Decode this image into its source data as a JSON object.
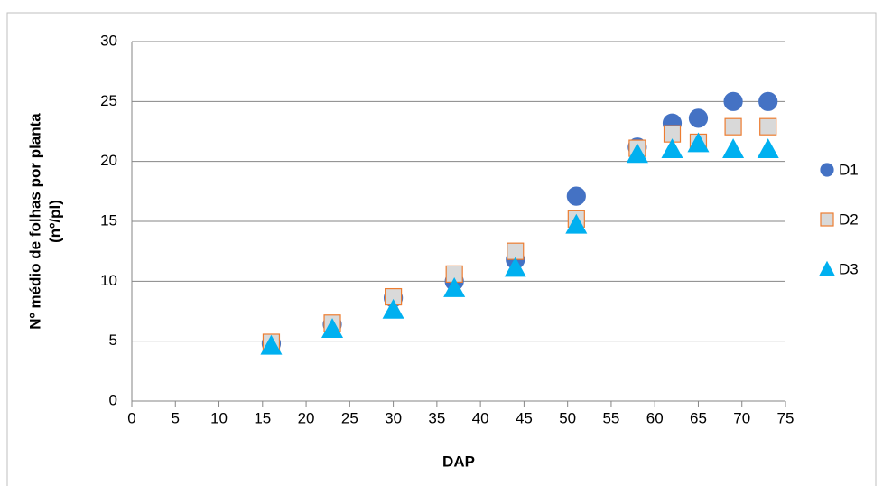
{
  "chart_data": {
    "type": "scatter",
    "xlabel": "DAP",
    "ylabel_lines": [
      "Nº médio de folhas por planta",
      "(nº/pl)"
    ],
    "x": [
      16,
      23,
      30,
      37,
      44,
      51,
      58,
      62,
      65,
      69,
      73
    ],
    "series": [
      {
        "name": "D1",
        "color": "#4472c4",
        "marker": "circle",
        "values": [
          4.8,
          6.4,
          8.6,
          10.0,
          11.8,
          17.1,
          21.2,
          23.2,
          23.6,
          25.0,
          25.0
        ]
      },
      {
        "name": "D2",
        "color": "#d9d9d9",
        "edgecolor": "#ed7d31",
        "marker": "square",
        "values": [
          4.9,
          6.5,
          8.7,
          10.6,
          12.5,
          15.2,
          21.1,
          22.3,
          21.6,
          22.9,
          22.9
        ]
      },
      {
        "name": "D3",
        "color": "#00b0f0",
        "marker": "triangle",
        "values": [
          4.6,
          6.0,
          7.6,
          9.4,
          11.1,
          14.7,
          20.6,
          21.0,
          21.5,
          21.0,
          21.0
        ]
      }
    ],
    "xlim": [
      0,
      75
    ],
    "xticks": [
      0,
      5,
      10,
      15,
      20,
      25,
      30,
      35,
      40,
      45,
      50,
      55,
      60,
      65,
      70,
      75
    ],
    "ylim": [
      0,
      30
    ],
    "yticks": [
      0,
      5,
      10,
      15,
      20,
      25,
      30
    ],
    "grid": true,
    "legend": "right"
  }
}
